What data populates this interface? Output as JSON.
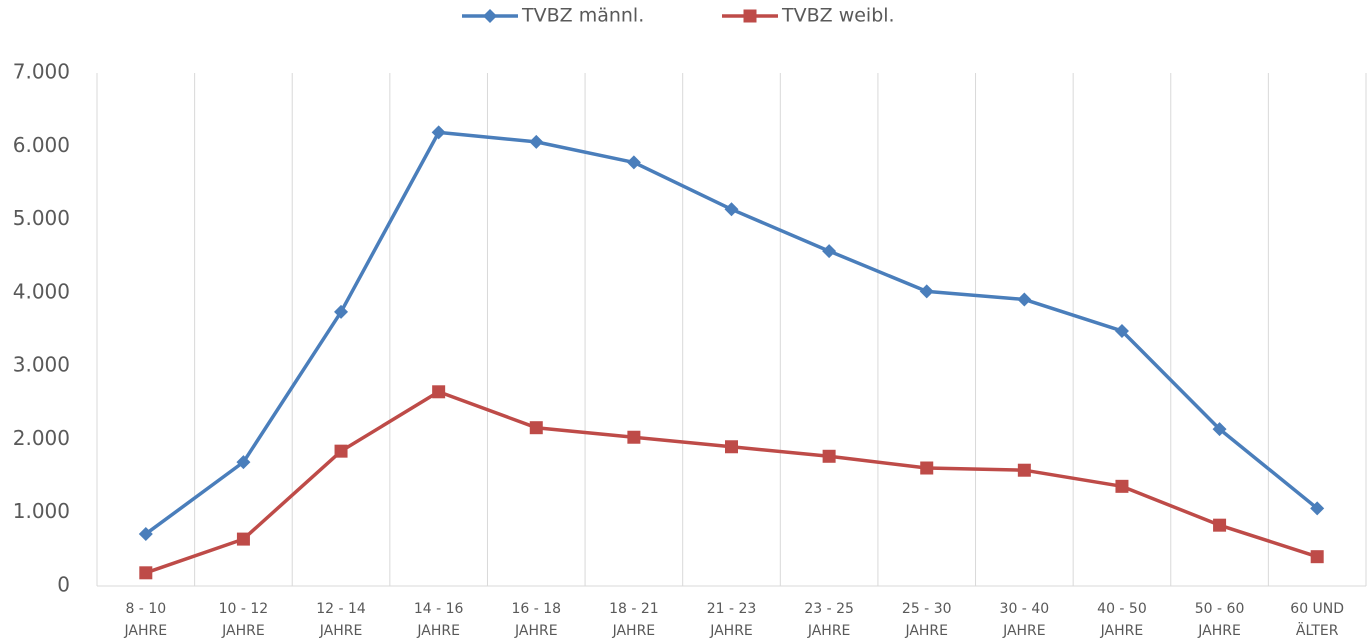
{
  "chart_data": {
    "type": "line",
    "categories": [
      "8 - 10 JAHRE",
      "10 - 12 JAHRE",
      "12 - 14 JAHRE",
      "14 - 16 JAHRE",
      "16 - 18 JAHRE",
      "18 - 21 JAHRE",
      "21 - 23 JAHRE",
      "23 - 25 JAHRE",
      "25 - 30 JAHRE",
      "30 - 40 JAHRE",
      "40 - 50 JAHRE",
      "50 - 60 JAHRE",
      "60 UND ÄLTER"
    ],
    "series": [
      {
        "name": "TVBZ männl.",
        "color": "#4a7ebb",
        "marker": "diamond",
        "values": [
          710,
          1690,
          3740,
          6190,
          6060,
          5780,
          5140,
          4570,
          4020,
          3910,
          3480,
          2140,
          1060
        ]
      },
      {
        "name": "TVBZ weibl.",
        "color": "#be4b48",
        "marker": "square",
        "values": [
          180,
          640,
          1840,
          2650,
          2160,
          2030,
          1900,
          1770,
          1610,
          1580,
          1360,
          830,
          400
        ]
      }
    ],
    "ylim": [
      0,
      7000
    ],
    "yticks": [
      0,
      {
        "value": 1000,
        "label": "1.000"
      },
      {
        "value": 2000,
        "label": "2.000"
      },
      {
        "value": 3000,
        "label": "3.000"
      },
      {
        "value": 4000,
        "label": "4.000"
      },
      {
        "value": 5000,
        "label": "5.000"
      },
      {
        "value": 6000,
        "label": "6.000"
      },
      {
        "value": 7000,
        "label": "7.000"
      }
    ],
    "grid": "vertical",
    "legend": "top"
  }
}
